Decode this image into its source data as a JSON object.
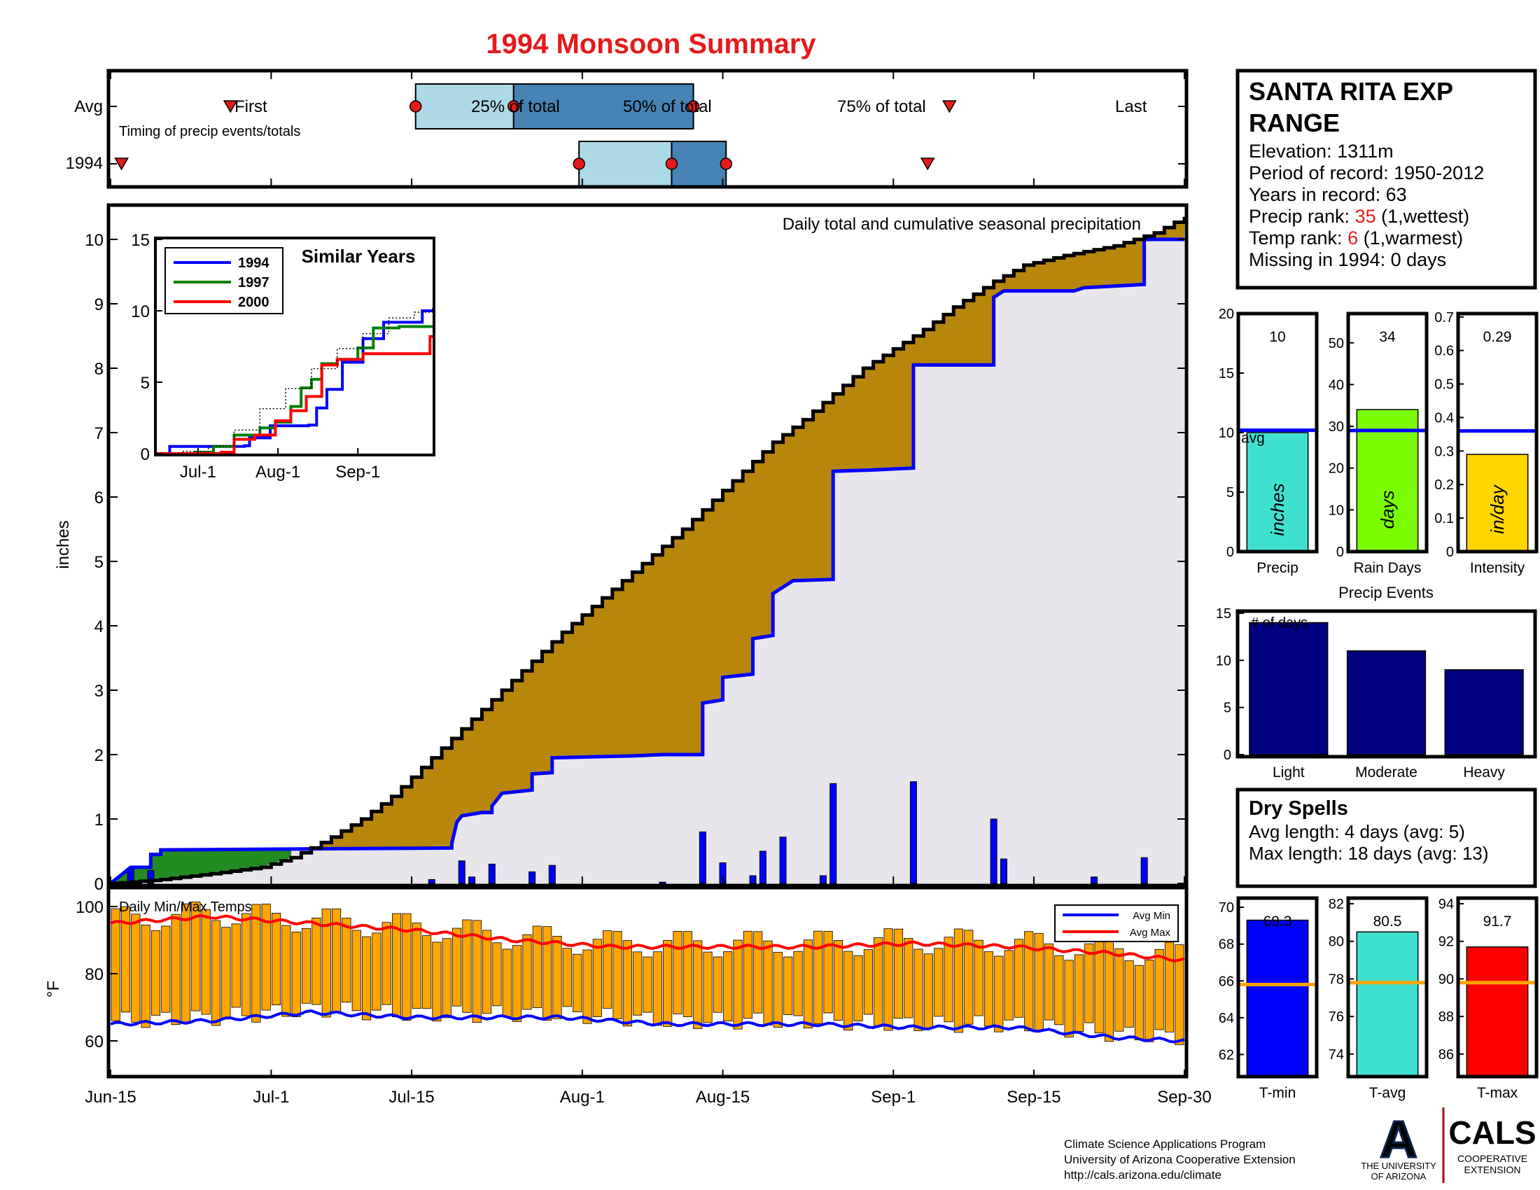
{
  "page": {
    "title": "1994 Monsoon Summary",
    "credits": [
      "Climate Science Applications Program",
      "University of Arizona Cooperative Extension",
      "http://cals.arizona.edu/climate"
    ],
    "logo_ua": {
      "letter": "A",
      "line1": "THE UNIVERSITY",
      "line2": "OF ARIZONA"
    },
    "logo_cals": {
      "word": "CALS",
      "line1": "COOPERATIVE",
      "line2": "EXTENSION"
    }
  },
  "station": {
    "name_line1": "SANTA RITA EXP",
    "name_line2": "RANGE",
    "elevation": "Elevation: 1311m",
    "period": "Period of record: 1950-2012",
    "years": "Years in record: 63",
    "precip_rank_label": "Precip rank: ",
    "precip_rank_value": "35",
    "precip_rank_note": " (1,wettest)",
    "temp_rank_label": "Temp rank: ",
    "temp_rank_value": "6",
    "temp_rank_note": " (1,warmest)",
    "missing": "Missing in 1994: 0 days"
  },
  "dry_spells": {
    "title": "Dry Spells",
    "avg": "Avg length: 4 days (avg: 5)",
    "max": "Max length: 18 days (avg: 13)"
  },
  "colors": {
    "title": "#e41a1c",
    "cum_fill": "#b8860b",
    "avg_fill": "#e8e6ea",
    "early_fill": "#228b22",
    "daily_bars": "#0000ff",
    "temp_bars": "#ffa500",
    "avg_min": "#0000ff",
    "avg_max": "#ff0000",
    "box_light": "#add8e6",
    "box_dark": "#4682b4",
    "precip_bar": "#40e0d0",
    "raindays_bar": "#7cfc00",
    "intensity_bar": "#ffd700",
    "events_bar": "#000080",
    "dry_spell_text": "#8b4513"
  },
  "chart_data": [
    {
      "id": "timing",
      "type": "timeline",
      "title": "Timing of precip events/totals",
      "rows": [
        "Avg",
        "1994"
      ],
      "avg": {
        "first": 22,
        "p25": 56,
        "p50": 74,
        "p75": 107,
        "last": 154,
        "labels": {
          "first": "First",
          "p25": "25% of total",
          "p50": "50% of total",
          "p75": "75% of total",
          "last": "Last"
        }
      },
      "y1994": {
        "first": 2,
        "p25": 86,
        "p50": 103,
        "p75": 113,
        "last": 150
      },
      "xlim": [
        0,
        138
      ]
    },
    {
      "id": "precip",
      "type": "area",
      "title": "Daily total and cumulative seasonal precipitation",
      "ylabel": "inches",
      "ylim": [
        0,
        10.5
      ],
      "yticks": [
        0,
        1,
        2,
        3,
        4,
        5,
        6,
        7,
        8,
        9,
        10
      ],
      "x_tick_labels": [
        "Jun-15",
        "Jul-1",
        "Jul-15",
        "Aug-1",
        "Aug-15",
        "Sep-1",
        "Sep-15",
        "Sep-30"
      ],
      "x_tick_days": [
        0,
        16,
        30,
        47,
        61,
        78,
        92,
        107
      ],
      "xlim": [
        0,
        107
      ],
      "avg_cumulative": [
        [
          0,
          0
        ],
        [
          2,
          0.02
        ],
        [
          5,
          0.06
        ],
        [
          10,
          0.15
        ],
        [
          15,
          0.25
        ],
        [
          18,
          0.4
        ],
        [
          20,
          0.55
        ],
        [
          22,
          0.72
        ],
        [
          25,
          1.0
        ],
        [
          28,
          1.35
        ],
        [
          30,
          1.65
        ],
        [
          33,
          2.1
        ],
        [
          36,
          2.55
        ],
        [
          39,
          3.0
        ],
        [
          42,
          3.45
        ],
        [
          45,
          3.9
        ],
        [
          48,
          4.3
        ],
        [
          51,
          4.7
        ],
        [
          54,
          5.1
        ],
        [
          57,
          5.5
        ],
        [
          60,
          5.95
        ],
        [
          63,
          6.4
        ],
        [
          66,
          6.85
        ],
        [
          69,
          7.2
        ],
        [
          72,
          7.6
        ],
        [
          75,
          8.0
        ],
        [
          78,
          8.3
        ],
        [
          81,
          8.6
        ],
        [
          84,
          8.95
        ],
        [
          88,
          9.35
        ],
        [
          91,
          9.6
        ],
        [
          95,
          9.75
        ],
        [
          100,
          9.9
        ],
        [
          104,
          10.1
        ],
        [
          107,
          10.35
        ]
      ],
      "cum_1994": [
        [
          0,
          0
        ],
        [
          2,
          0.25
        ],
        [
          4,
          0.25
        ],
        [
          4,
          0.45
        ],
        [
          5,
          0.45
        ],
        [
          5,
          0.52
        ],
        [
          34,
          0.55
        ],
        [
          34,
          0.62
        ],
        [
          34.5,
          0.95
        ],
        [
          35,
          1.05
        ],
        [
          37,
          1.1
        ],
        [
          38,
          1.1
        ],
        [
          38,
          1.2
        ],
        [
          39,
          1.4
        ],
        [
          42,
          1.45
        ],
        [
          42,
          1.7
        ],
        [
          44,
          1.72
        ],
        [
          44,
          1.95
        ],
        [
          52,
          1.98
        ],
        [
          55,
          2.0
        ],
        [
          59,
          2.0
        ],
        [
          59,
          2.8
        ],
        [
          61,
          2.85
        ],
        [
          61,
          3.2
        ],
        [
          64,
          3.25
        ],
        [
          64,
          3.8
        ],
        [
          66,
          3.85
        ],
        [
          66,
          4.5
        ],
        [
          67,
          4.6
        ],
        [
          68,
          4.7
        ],
        [
          72,
          4.72
        ],
        [
          72,
          6.4
        ],
        [
          76,
          6.42
        ],
        [
          80,
          6.45
        ],
        [
          80,
          8.05
        ],
        [
          88,
          8.05
        ],
        [
          88,
          9.1
        ],
        [
          89,
          9.2
        ],
        [
          96,
          9.2
        ],
        [
          97,
          9.25
        ],
        [
          103,
          9.3
        ],
        [
          103,
          10.0
        ],
        [
          107,
          10.0
        ]
      ],
      "early_above_avg_end": 18,
      "daily_values": [
        [
          2,
          0.22
        ],
        [
          4,
          0.2
        ],
        [
          32,
          0.06
        ],
        [
          35,
          0.35
        ],
        [
          36,
          0.1
        ],
        [
          38,
          0.3
        ],
        [
          42,
          0.18
        ],
        [
          44,
          0.28
        ],
        [
          55,
          0.02
        ],
        [
          59,
          0.8
        ],
        [
          61,
          0.32
        ],
        [
          64,
          0.12
        ],
        [
          65,
          0.5
        ],
        [
          67,
          0.72
        ],
        [
          71,
          0.12
        ],
        [
          72,
          1.55
        ],
        [
          80,
          1.58
        ],
        [
          88,
          1.0
        ],
        [
          89,
          0.38
        ],
        [
          98,
          0.1
        ],
        [
          103,
          0.4
        ]
      ]
    },
    {
      "id": "similar",
      "type": "line",
      "title": "Similar Years",
      "ylim": [
        0,
        15
      ],
      "yticks": [
        0,
        5,
        10,
        15
      ],
      "x_tick_labels": [
        "Jul-1",
        "Aug-1",
        "Sep-1"
      ],
      "x_tick_days": [
        16,
        47,
        78
      ],
      "xlim": [
        0,
        107
      ],
      "series": [
        {
          "name": "1994",
          "color": "#0000ff",
          "points": [
            [
              0,
              0
            ],
            [
              5,
              0.5
            ],
            [
              34,
              0.55
            ],
            [
              36,
              1.1
            ],
            [
              44,
              1.95
            ],
            [
              59,
              2.0
            ],
            [
              62,
              3.2
            ],
            [
              66,
              4.5
            ],
            [
              72,
              6.4
            ],
            [
              80,
              8.05
            ],
            [
              88,
              9.2
            ],
            [
              103,
              10.0
            ],
            [
              107,
              10.0
            ]
          ]
        },
        {
          "name": "1997",
          "color": "#008000",
          "points": [
            [
              0,
              0
            ],
            [
              15,
              0.1
            ],
            [
              22,
              0.5
            ],
            [
              30,
              1.3
            ],
            [
              40,
              1.8
            ],
            [
              46,
              2.2
            ],
            [
              52,
              3.3
            ],
            [
              56,
              4.6
            ],
            [
              60,
              5.2
            ],
            [
              64,
              6.3
            ],
            [
              70,
              6.6
            ],
            [
              78,
              7.4
            ],
            [
              84,
              8.8
            ],
            [
              94,
              8.9
            ],
            [
              107,
              8.9
            ]
          ]
        },
        {
          "name": "2000",
          "color": "#ff0000",
          "points": [
            [
              0,
              0
            ],
            [
              25,
              0.1
            ],
            [
              30,
              1.0
            ],
            [
              38,
              1.3
            ],
            [
              46,
              2.3
            ],
            [
              52,
              3.0
            ],
            [
              58,
              4.0
            ],
            [
              64,
              6.2
            ],
            [
              70,
              6.6
            ],
            [
              80,
              7.0
            ],
            [
              95,
              7.0
            ],
            [
              103,
              7.0
            ],
            [
              106,
              8.2
            ],
            [
              107,
              8.2
            ]
          ]
        },
        {
          "name": "",
          "color": "#000000",
          "dotted": true,
          "points": [
            [
              0,
              0
            ],
            [
              10,
              0.15
            ],
            [
              20,
              0.55
            ],
            [
              30,
              1.65
            ],
            [
              40,
              3.15
            ],
            [
              50,
              4.55
            ],
            [
              60,
              5.95
            ],
            [
              70,
              7.35
            ],
            [
              80,
              8.4
            ],
            [
              90,
              9.5
            ],
            [
              100,
              9.9
            ],
            [
              107,
              10.35
            ]
          ]
        }
      ]
    },
    {
      "id": "temps",
      "type": "bar",
      "title": "Daily Min/Max Temps",
      "ylabel": "°F",
      "ylim": [
        50,
        105
      ],
      "yticks": [
        60,
        80,
        100
      ],
      "xlim": [
        0,
        107
      ],
      "legend": [
        "Avg Min",
        "Avg Max"
      ],
      "avg_min": [
        [
          0,
          65
        ],
        [
          10,
          66
        ],
        [
          20,
          68.5
        ],
        [
          30,
          67
        ],
        [
          45,
          67
        ],
        [
          55,
          65
        ],
        [
          70,
          65
        ],
        [
          80,
          64
        ],
        [
          90,
          64
        ],
        [
          100,
          61
        ],
        [
          107,
          60
        ]
      ],
      "avg_max": [
        [
          0,
          95
        ],
        [
          10,
          97
        ],
        [
          20,
          95
        ],
        [
          30,
          93
        ],
        [
          40,
          90
        ],
        [
          50,
          88
        ],
        [
          60,
          88
        ],
        [
          70,
          88
        ],
        [
          80,
          89
        ],
        [
          90,
          88
        ],
        [
          100,
          86
        ],
        [
          107,
          84
        ]
      ]
    },
    {
      "id": "precip_total",
      "type": "bar",
      "xlabel": "Precip",
      "bar_label": "inches",
      "value": 10,
      "avg": 10.2,
      "avg_label": "avg",
      "ylim": [
        0,
        20
      ],
      "yticks": [
        0,
        5,
        10,
        15,
        20
      ]
    },
    {
      "id": "rain_days",
      "type": "bar",
      "xlabel": "Rain Days",
      "bar_label": "days",
      "value": 34,
      "avg": 29,
      "ylim": [
        0,
        57
      ],
      "yticks": [
        0,
        10,
        20,
        30,
        40,
        50
      ]
    },
    {
      "id": "intensity",
      "type": "bar",
      "xlabel": "Intensity",
      "bar_label": "in/day",
      "value": 0.29,
      "avg": 0.36,
      "ylim": [
        0,
        0.71
      ],
      "yticks": [
        0,
        0.1,
        0.2,
        0.3,
        0.4,
        0.5,
        0.6,
        0.7
      ]
    },
    {
      "id": "events",
      "type": "bar",
      "title": "Precip Events",
      "ylabel": "# of days",
      "categories": [
        "Light",
        "Moderate",
        "Heavy"
      ],
      "values": [
        14,
        11,
        9
      ],
      "ylim": [
        0,
        15
      ],
      "yticks": [
        0,
        5,
        10,
        15
      ]
    },
    {
      "id": "tmin",
      "type": "bar",
      "xlabel": "T-min",
      "value": 69.3,
      "avg": 65.8,
      "ylim": [
        60.8,
        70.5
      ],
      "yticks": [
        62,
        64,
        66,
        68,
        70
      ]
    },
    {
      "id": "tavg",
      "type": "bar",
      "xlabel": "T-avg",
      "value": 80.5,
      "avg": 77.8,
      "ylim": [
        72.8,
        82.3
      ],
      "yticks": [
        74,
        76,
        78,
        80,
        82
      ]
    },
    {
      "id": "tmax",
      "type": "bar",
      "xlabel": "T-max",
      "value": 91.7,
      "avg": 89.8,
      "ylim": [
        84.8,
        94.3
      ],
      "yticks": [
        86,
        88,
        90,
        92,
        94
      ]
    }
  ]
}
